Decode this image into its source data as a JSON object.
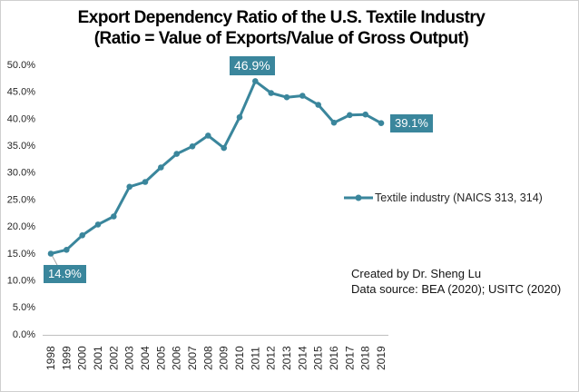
{
  "title": {
    "line1": "Export Dependency Ratio of the U.S. Textile Industry",
    "line2": "(Ratio = Value of Exports/Value of Gross Output)"
  },
  "legend": {
    "label": "Textile industry (NAICS 313, 314)"
  },
  "credits": {
    "line1": "Created by Dr. Sheng Lu",
    "line2": "Data source: BEA (2020); USITC (2020)"
  },
  "colors": {
    "series": "#3a869c",
    "label_bg": "#3a869c",
    "label_text": "#ffffff",
    "axis_line": "#bfbfbf",
    "axis_text": "#262626",
    "leader_line": "#a6a6a6"
  },
  "chart_data": {
    "type": "line",
    "title": "Export Dependency Ratio of the U.S. Textile Industry (Ratio = Value of Exports/Value of Gross Output)",
    "categories": [
      "1998",
      "1999",
      "2000",
      "2001",
      "2002",
      "2003",
      "2004",
      "2005",
      "2006",
      "2007",
      "2008",
      "2009",
      "2010",
      "2011",
      "2012",
      "2013",
      "2014",
      "2015",
      "2016",
      "2017",
      "2018",
      "2019"
    ],
    "series": [
      {
        "name": "Textile industry (NAICS 313, 314)",
        "values": [
          14.9,
          15.6,
          18.3,
          20.3,
          21.8,
          27.3,
          28.2,
          30.9,
          33.4,
          34.8,
          36.8,
          34.5,
          40.2,
          46.9,
          44.7,
          43.9,
          44.2,
          42.5,
          39.2,
          40.6,
          40.7,
          39.1
        ]
      }
    ],
    "xlabel": "",
    "ylabel": "",
    "ylim": [
      0,
      50
    ],
    "y_ticks": [
      "0.0%",
      "5.0%",
      "10.0%",
      "15.0%",
      "20.0%",
      "25.0%",
      "30.0%",
      "35.0%",
      "40.0%",
      "45.0%",
      "50.0%"
    ],
    "grid": false,
    "legend_position": "middle-right",
    "data_labels": [
      {
        "category": "1998",
        "text": "14.9%"
      },
      {
        "category": "2011",
        "text": "46.9%"
      },
      {
        "category": "2019",
        "text": "39.1%"
      }
    ]
  }
}
